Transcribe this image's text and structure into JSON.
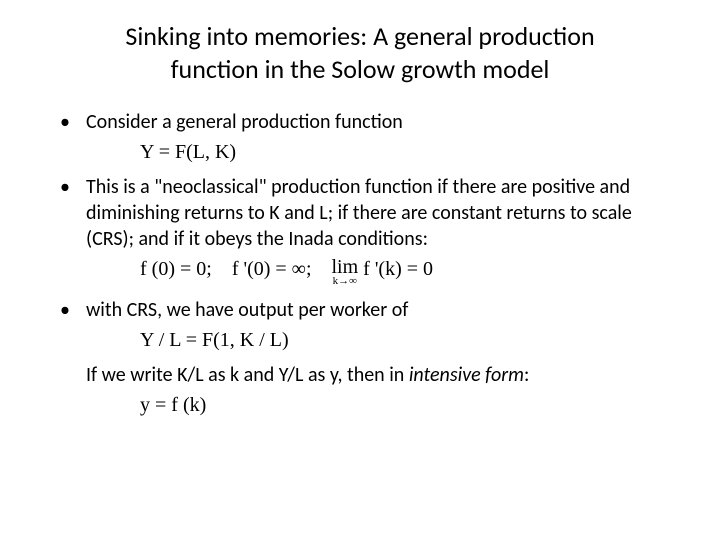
{
  "slide": {
    "title": "Sinking into memories: A general production function in the Solow growth model",
    "bullets": {
      "b1": "Consider a general production function",
      "b2": "This is a \"neoclassical\" production function if there are positive and diminishing returns to K and L; if there are constant returns to scale (CRS); and if it obeys the Inada conditions:",
      "b3": "with CRS, we have output per worker of"
    },
    "continuation": {
      "c1_prefix": "If we write K/L as k and Y/L as y, then in ",
      "c1_emph": "intensive form",
      "c1_suffix": ":"
    },
    "formulas": {
      "f1": "Y = F(L, K)",
      "f2_p1": "f (0) = 0; f '(0) = ∞; ",
      "f2_lim_top": "lim",
      "f2_lim_bottom": "k→∞",
      "f2_p2": " f '(k) = 0",
      "f3": "Y / L = F(1, K / L)",
      "f4": "y = f (k)"
    },
    "style": {
      "background": "#ffffff",
      "text_color": "#000000",
      "title_fontsize": 26,
      "body_fontsize": 20,
      "formula_font": "Times New Roman"
    }
  }
}
